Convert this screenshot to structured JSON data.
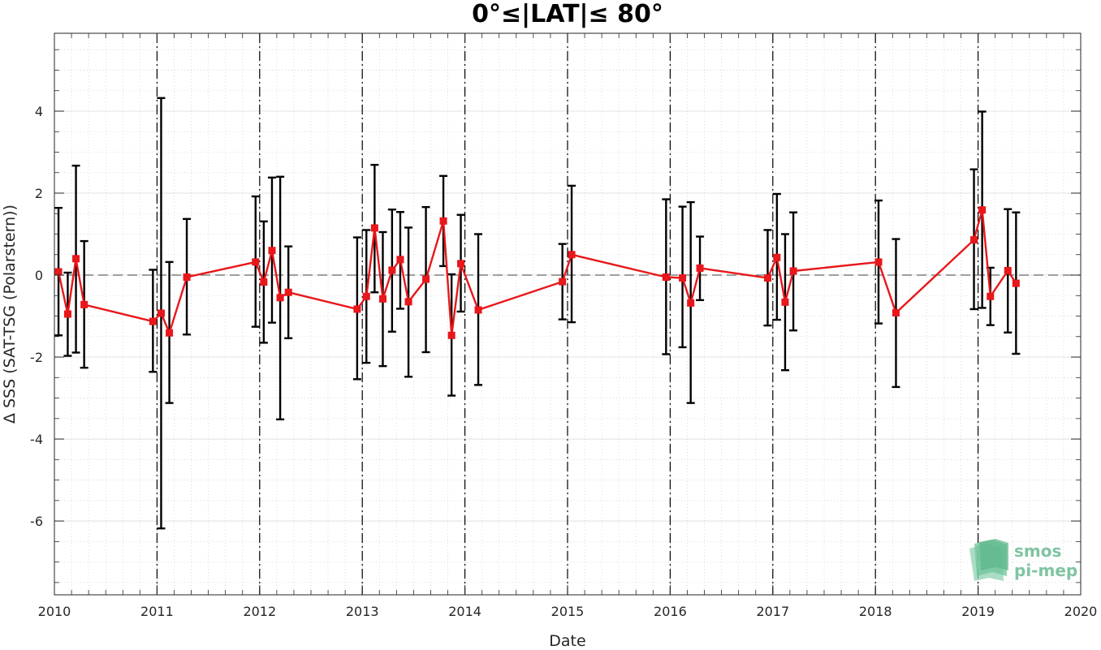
{
  "chart_data": {
    "type": "line",
    "title": "0°≤|LAT|≤ 80°",
    "xlabel": "Date",
    "ylabel": "Δ SSS (SAT-TSG (Polarstern))",
    "xlim": [
      2010,
      2020
    ],
    "ylim": [
      -7.8,
      5.9
    ],
    "x_ticks": [
      "2010",
      "2011",
      "2012",
      "2013",
      "2014",
      "2015",
      "2016",
      "2017",
      "2018",
      "2019",
      "2020"
    ],
    "y_ticks": [
      -6,
      -4,
      -2,
      0,
      2,
      4
    ],
    "y_tick_labels": [
      "-6",
      "-4",
      "-2",
      "0",
      "2",
      "4"
    ],
    "grid": true,
    "zero_line": 0,
    "year_lines": [
      2011,
      2012,
      2013,
      2014,
      2015,
      2016,
      2017,
      2018,
      2019
    ],
    "colors": {
      "series": "#e8171b",
      "errorbar": "#000000",
      "logo": "#5bb58a"
    },
    "series": [
      {
        "x": [
          2010.04,
          2010.13,
          2010.21,
          2010.29,
          2010.96,
          2011.04,
          2011.12,
          2011.29,
          2011.96,
          2012.04,
          2012.12,
          2012.2,
          2012.28,
          2012.95,
          2013.04,
          2013.12,
          2013.2,
          2013.29,
          2013.37,
          2013.45,
          2013.62,
          2013.79,
          2013.87,
          2013.96,
          2014.13,
          2014.95,
          2015.04,
          2015.96,
          2016.12,
          2016.2,
          2016.29,
          2016.95,
          2017.04,
          2017.12,
          2017.2,
          2018.03,
          2018.2,
          2018.96,
          2019.04,
          2019.12,
          2019.29,
          2019.37
        ],
        "y": [
          0.08,
          -0.95,
          0.4,
          -0.72,
          -1.13,
          -0.93,
          -1.41,
          -0.05,
          0.32,
          -0.17,
          0.6,
          -0.55,
          -0.42,
          -0.83,
          -0.52,
          1.15,
          -0.58,
          0.12,
          0.38,
          -0.65,
          -0.1,
          1.32,
          -1.47,
          0.28,
          -0.85,
          -0.16,
          0.5,
          -0.05,
          -0.07,
          -0.68,
          0.17,
          -0.07,
          0.43,
          -0.66,
          0.1,
          0.32,
          -0.92,
          0.86,
          1.59,
          -0.52,
          0.11,
          -0.2
        ],
        "err_low": [
          -1.47,
          -1.97,
          -1.89,
          -2.26,
          -2.36,
          -6.18,
          -3.12,
          -1.45,
          -1.26,
          -1.65,
          -1.16,
          -3.52,
          -1.54,
          -2.54,
          -2.14,
          -0.42,
          -2.22,
          -1.38,
          -0.82,
          -2.48,
          -1.88,
          0.22,
          -2.94,
          -0.89,
          -2.68,
          -1.08,
          -1.15,
          -1.93,
          -1.76,
          -3.12,
          -0.61,
          -1.23,
          -1.09,
          -2.32,
          -1.35,
          -1.18,
          -2.73,
          -0.83,
          -0.8,
          -1.22,
          -1.4,
          -1.92
        ],
        "err_high": [
          1.64,
          0.06,
          2.67,
          0.83,
          0.13,
          4.32,
          0.32,
          1.37,
          1.92,
          1.31,
          2.38,
          2.4,
          0.7,
          0.92,
          1.1,
          2.69,
          1.05,
          1.6,
          1.54,
          1.16,
          1.66,
          2.42,
          0.02,
          1.47,
          1.0,
          0.76,
          2.18,
          1.85,
          1.67,
          1.78,
          0.94,
          1.1,
          1.98,
          1.0,
          1.53,
          1.82,
          0.88,
          2.58,
          3.99,
          0.18,
          1.61,
          1.53
        ]
      }
    ]
  },
  "logo": {
    "line1": "smos",
    "line2": "pi-mep"
  }
}
